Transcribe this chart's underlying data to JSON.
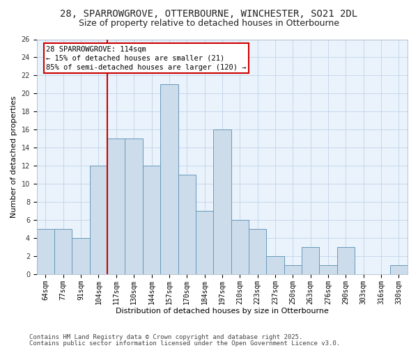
{
  "title1": "28, SPARROWGROVE, OTTERBOURNE, WINCHESTER, SO21 2DL",
  "title2": "Size of property relative to detached houses in Otterbourne",
  "xlabel": "Distribution of detached houses by size in Otterbourne",
  "ylabel": "Number of detached properties",
  "categories": [
    "64sqm",
    "77sqm",
    "91sqm",
    "104sqm",
    "117sqm",
    "130sqm",
    "144sqm",
    "157sqm",
    "170sqm",
    "184sqm",
    "197sqm",
    "210sqm",
    "223sqm",
    "237sqm",
    "250sqm",
    "263sqm",
    "276sqm",
    "290sqm",
    "303sqm",
    "316sqm",
    "330sqm"
  ],
  "values": [
    5,
    5,
    4,
    12,
    15,
    15,
    12,
    21,
    11,
    7,
    16,
    6,
    5,
    2,
    1,
    3,
    1,
    3,
    0,
    0,
    1
  ],
  "bar_color": "#cddceb",
  "bar_edge_color": "#6699bb",
  "vline_color": "#cc0000",
  "vline_pos": 3.5,
  "annotation_text": "28 SPARROWGROVE: 114sqm\n← 15% of detached houses are smaller (21)\n85% of semi-detached houses are larger (120) →",
  "annotation_box_color": "#cc0000",
  "grid_color": "#c0d4e8",
  "bg_color": "#eaf2fb",
  "fig_bg_color": "#ffffff",
  "ylim": [
    0,
    26
  ],
  "yticks": [
    0,
    2,
    4,
    6,
    8,
    10,
    12,
    14,
    16,
    18,
    20,
    22,
    24,
    26
  ],
  "footer1": "Contains HM Land Registry data © Crown copyright and database right 2025.",
  "footer2": "Contains public sector information licensed under the Open Government Licence v3.0.",
  "title_fontsize": 10,
  "subtitle_fontsize": 9,
  "axis_label_fontsize": 8,
  "tick_fontsize": 7,
  "footer_fontsize": 6.5,
  "annotation_fontsize": 7.5
}
